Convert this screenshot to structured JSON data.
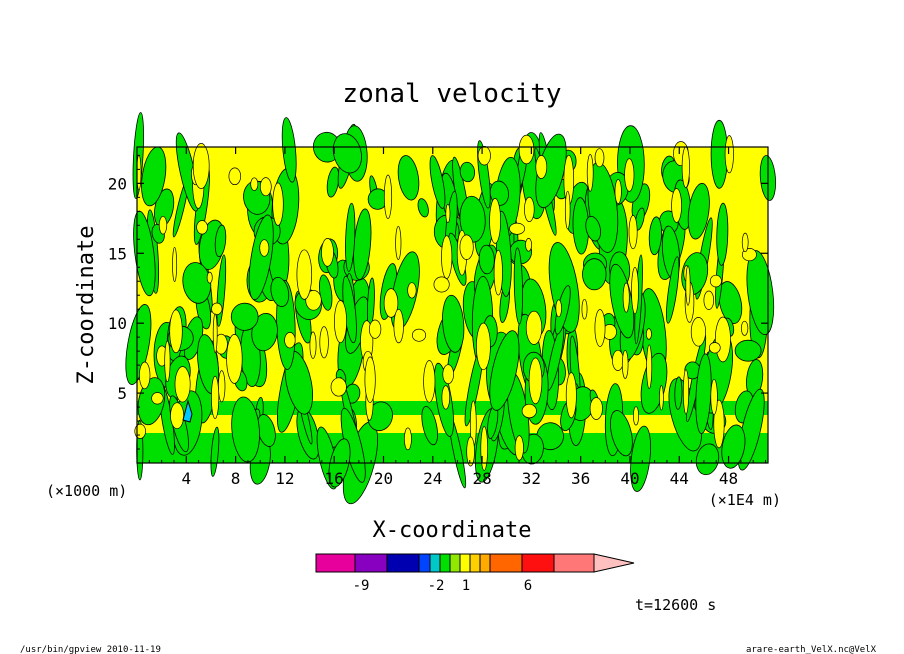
{
  "chart_data": {
    "type": "heatmap",
    "title": "zonal velocity",
    "xlabel": "X-coordinate",
    "ylabel": "Z-coordinate",
    "x_unit_left": "(×1000 m)",
    "x_unit_right": "(×1E4 m)",
    "x_ticks": [
      "4",
      "8",
      "12",
      "16",
      "20",
      "24",
      "28",
      "32",
      "36",
      "40",
      "44",
      "48"
    ],
    "x_tick_values": [
      4,
      8,
      12,
      16,
      20,
      24,
      28,
      32,
      36,
      40,
      44,
      48
    ],
    "xlim": [
      0,
      51.2
    ],
    "y_ticks": [
      "5",
      "10",
      "15",
      "20"
    ],
    "y_tick_values": [
      5,
      10,
      15,
      20
    ],
    "ylim": [
      0,
      22.6
    ],
    "grid": false,
    "colorbar": {
      "tick_labels": [
        "-9",
        "-2",
        "1",
        "6"
      ],
      "colors": [
        "#e8009c",
        "#8800c0",
        "#0000b0",
        "#0044ff",
        "#00c8c8",
        "#00e000",
        "#90e800",
        "#ffff00",
        "#ffd000",
        "#ffaa00",
        "#ff6600",
        "#ff1010",
        "#ff7777",
        "#ffc0c0"
      ],
      "palette": {
        "green": "#00e000",
        "yellow": "#ffff00",
        "cyan": "#00c8ff",
        "contour": "#000000"
      }
    },
    "time_label": "t=12600 s",
    "footer_left": "/usr/bin/gpview   2010-11-19",
    "footer_right": "arare-earth_VelX.nc@VelX"
  }
}
